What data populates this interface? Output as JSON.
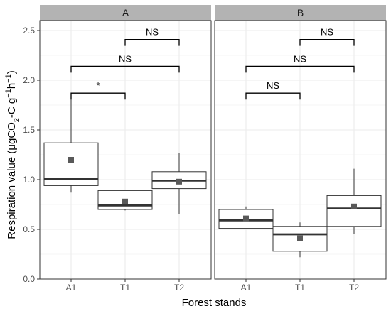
{
  "chart_data": {
    "type": "boxplot",
    "facet": true,
    "ylabel_parts": {
      "base": "Respiration value (μgCO",
      "sub": "2",
      "mid": "-C g",
      "sup1": "−1",
      "h": "h",
      "sup2": "−1",
      "end": ")"
    },
    "xlabel": "Forest stands",
    "ylim": [
      0,
      2.6
    ],
    "yticks": [
      0.0,
      0.5,
      1.0,
      1.5,
      2.0,
      2.5
    ],
    "ytick_labels": [
      "0.0",
      "0.5",
      "1.0",
      "1.5",
      "2.0",
      "2.5"
    ],
    "categories": [
      "A1",
      "T1",
      "T2"
    ],
    "grid": true,
    "panels": [
      {
        "label": "A",
        "boxes": [
          {
            "category": "A1",
            "min": 0.87,
            "q1": 0.94,
            "median": 1.01,
            "q3": 1.37,
            "max": 1.82,
            "mean": 1.2
          },
          {
            "category": "T1",
            "min": 0.69,
            "q1": 0.7,
            "median": 0.74,
            "q3": 0.89,
            "max": 0.89,
            "mean": 0.78
          },
          {
            "category": "T2",
            "min": 0.65,
            "q1": 0.91,
            "median": 0.99,
            "q3": 1.08,
            "max": 1.27,
            "mean": 0.98
          }
        ],
        "comparisons": [
          {
            "from": "T1",
            "to": "T2",
            "y": 2.41,
            "label": "NS"
          },
          {
            "from": "A1",
            "to": "T2",
            "y": 2.14,
            "label": "NS"
          },
          {
            "from": "A1",
            "to": "T1",
            "y": 1.87,
            "label": "*"
          }
        ]
      },
      {
        "label": "B",
        "boxes": [
          {
            "category": "A1",
            "min": 0.5,
            "q1": 0.51,
            "median": 0.59,
            "q3": 0.7,
            "max": 0.73,
            "mean": 0.61
          },
          {
            "category": "T1",
            "min": 0.22,
            "q1": 0.28,
            "median": 0.45,
            "q3": 0.53,
            "max": 0.57,
            "mean": 0.41
          },
          {
            "category": "T2",
            "min": 0.45,
            "q1": 0.53,
            "median": 0.71,
            "q3": 0.84,
            "max": 1.11,
            "mean": 0.73
          }
        ],
        "comparisons": [
          {
            "from": "T1",
            "to": "T2",
            "y": 2.41,
            "label": "NS"
          },
          {
            "from": "A1",
            "to": "T2",
            "y": 2.14,
            "label": "NS"
          },
          {
            "from": "A1",
            "to": "T1",
            "y": 1.87,
            "label": "NS"
          }
        ]
      }
    ],
    "colors": {
      "panel_bg": "#ffffff",
      "grid": "#ebebeb",
      "panel_border": "#333333",
      "strip_bg": "#b3b3b3",
      "box_line": "#333333",
      "median": "#333333",
      "mean_marker": "#595959",
      "bracket": "#000000"
    }
  }
}
